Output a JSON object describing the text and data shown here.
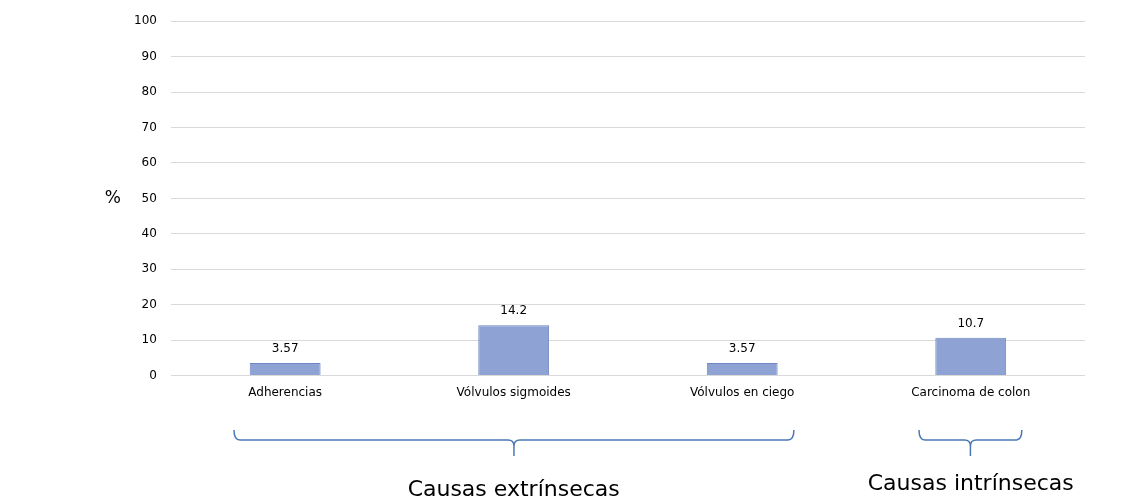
{
  "chart_data": {
    "type": "bar",
    "ylabel": "%",
    "categories": [
      "Adherencias",
      "Vólvulos sigmoides",
      "Vólvulos en ciego",
      "Carcinoma de colon"
    ],
    "values": [
      3.57,
      14.2,
      3.57,
      10.7
    ],
    "color": "#8ea2d4",
    "ylim": [
      0,
      100
    ],
    "yticks": [
      0,
      10,
      20,
      30,
      40,
      50,
      60,
      70,
      80,
      90,
      100
    ],
    "grid": "y",
    "legend": false,
    "data_labels": true,
    "annotations": [
      "Causas extrínsecas",
      "Causas intrínsecas"
    ]
  }
}
